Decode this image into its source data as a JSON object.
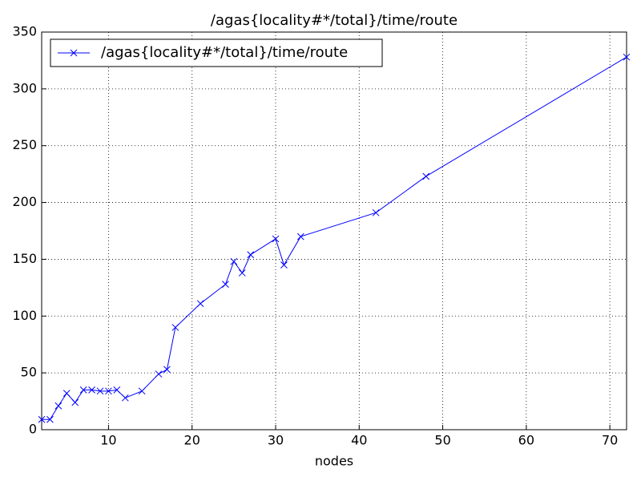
{
  "chart_data": {
    "type": "line",
    "title": "/agas{locality#*/total}/time/route",
    "x_label": "nodes",
    "x": [
      2,
      3,
      4,
      5,
      6,
      7,
      8,
      9,
      10,
      11,
      12,
      14,
      16,
      17,
      18,
      21,
      24,
      25,
      26,
      27,
      30,
      31,
      33,
      42,
      48,
      72
    ],
    "series": [
      {
        "name": "/agas{locality#*/total}/time/route",
        "color": "#0000ff",
        "marker": "x",
        "values": [
          9,
          9,
          21,
          32,
          24,
          35,
          35,
          34,
          34,
          35,
          28,
          34,
          49,
          53,
          90,
          111,
          128,
          148,
          138,
          154,
          168,
          145,
          170,
          191,
          223,
          328
        ]
      }
    ],
    "xlim": [
      2,
      72
    ],
    "xticks": [
      10,
      20,
      30,
      40,
      50,
      60,
      70
    ],
    "ylim": [
      0,
      350
    ],
    "yticks": [
      0,
      50,
      100,
      150,
      200,
      250,
      300,
      350
    ],
    "grid": true,
    "legend": "upper left"
  }
}
